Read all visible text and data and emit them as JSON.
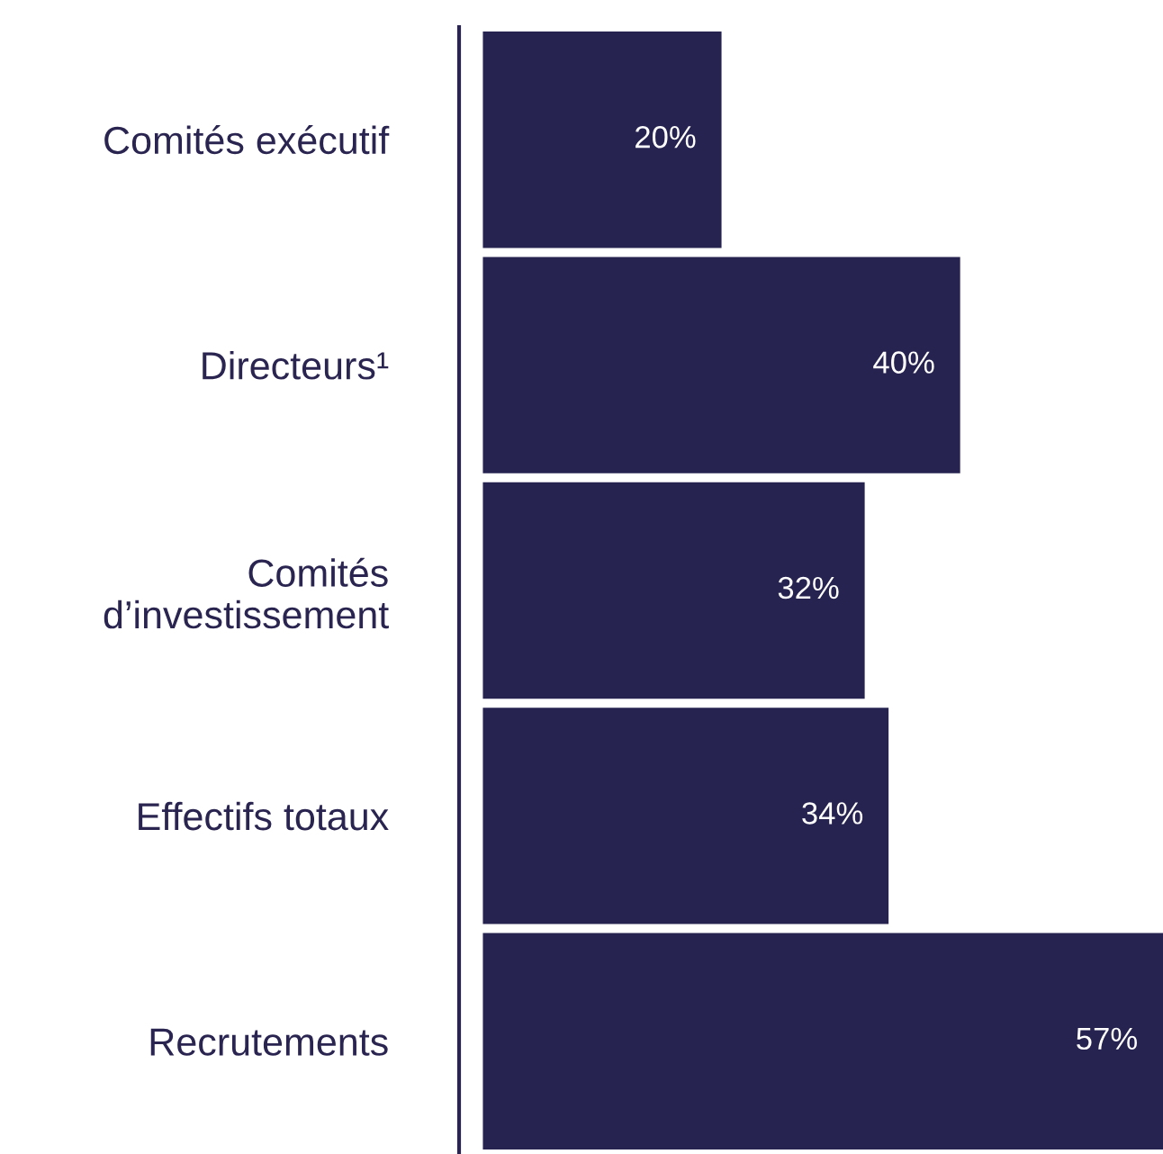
{
  "chart_data": {
    "type": "bar",
    "orientation": "horizontal",
    "categories": [
      "Comités exécutif",
      "Directeurs¹",
      "Comités\nd’investissement",
      "Effectifs totaux",
      "Recrutements"
    ],
    "values": [
      20,
      40,
      32,
      34,
      57
    ],
    "color": "#262350",
    "data_labels": true,
    "value_labels": [
      "20%",
      "40%",
      "32%",
      "34%",
      "57%"
    ],
    "grid": false,
    "legend": false
  }
}
